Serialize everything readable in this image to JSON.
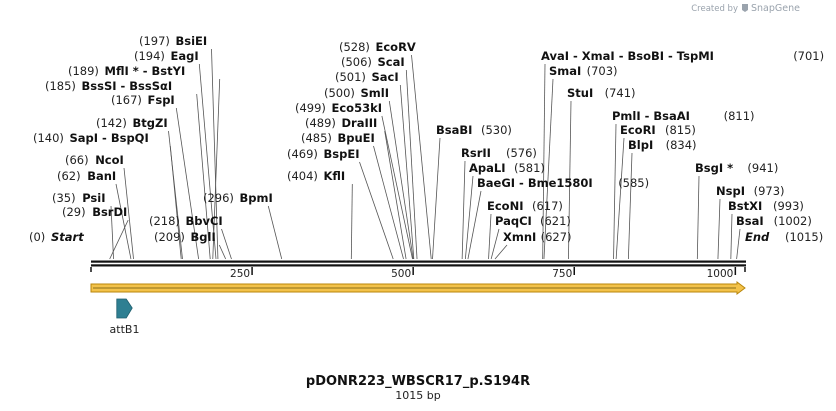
{
  "credit": {
    "prefix": "Created by",
    "brand": "SnapGene"
  },
  "plasmid": {
    "name": "pDONR223_WBSCR17_p.S194R",
    "length_label": "1015 bp",
    "length": 1015
  },
  "ticks": [
    250,
    500,
    750,
    1000
  ],
  "start_marker": {
    "pos": "(0)",
    "name": "Start",
    "at": 0
  },
  "end_marker": {
    "name": "End",
    "pos": "(1015)",
    "at": 1015
  },
  "sites": [
    {
      "pos": "(29)",
      "text": "BsrDI",
      "cuts": [
        29
      ],
      "side": "left"
    },
    {
      "pos": "(35)",
      "text": "PsiI",
      "cuts": [
        35
      ],
      "side": "left"
    },
    {
      "pos": "(62)",
      "text": "BanI",
      "cuts": [
        62
      ],
      "side": "left"
    },
    {
      "pos": "(66)",
      "text": "NcoI",
      "cuts": [
        66
      ],
      "side": "left"
    },
    {
      "pos": "(140)",
      "text": "SapI  -  BspQI",
      "cuts": [
        140
      ],
      "side": "left"
    },
    {
      "pos": "(142)",
      "text": "BtgZI",
      "cuts": [
        142
      ],
      "side": "left"
    },
    {
      "pos": "(167)",
      "text": "FspI",
      "cuts": [
        167
      ],
      "side": "left"
    },
    {
      "pos": "(185)",
      "text": "BssSI  -  BssSαI",
      "cuts": [
        185
      ],
      "side": "left"
    },
    {
      "pos": "(189)",
      "text": "MflI *  -  BstYI",
      "cuts": [
        189
      ],
      "side": "left"
    },
    {
      "pos": "(194)",
      "text": "EagI",
      "cuts": [
        194
      ],
      "side": "left"
    },
    {
      "pos": "(197)",
      "text": "BsiEI",
      "cuts": [
        197
      ],
      "side": "left"
    },
    {
      "pos": "(209)",
      "text": "BglI",
      "cuts": [
        209
      ],
      "side": "left"
    },
    {
      "pos": "(218)",
      "text": "BbvCI",
      "cuts": [
        218
      ],
      "side": "left"
    },
    {
      "pos": "(296)",
      "text": "BpmI",
      "cuts": [
        296
      ],
      "side": "left"
    },
    {
      "pos": "(404)",
      "text": "KflI",
      "cuts": [
        404
      ],
      "side": "left"
    },
    {
      "pos": "(469)",
      "text": "BspEI",
      "cuts": [
        469
      ],
      "side": "left"
    },
    {
      "pos": "(485)",
      "text": "BpuEI",
      "cuts": [
        485
      ],
      "side": "left"
    },
    {
      "pos": "(489)",
      "text": "DraIII",
      "cuts": [
        489
      ],
      "side": "left"
    },
    {
      "pos": "(499)",
      "text": "Eco53kI",
      "cuts": [
        499
      ],
      "side": "left"
    },
    {
      "pos": "(500)",
      "text": "SmlI",
      "cuts": [
        500
      ],
      "side": "left"
    },
    {
      "pos": "(501)",
      "text": "SacI",
      "cuts": [
        501
      ],
      "side": "left"
    },
    {
      "pos": "(506)",
      "text": "ScaI",
      "cuts": [
        506
      ],
      "side": "left"
    },
    {
      "pos": "(528)",
      "text": "EcoRV",
      "cuts": [
        528
      ],
      "side": "left"
    },
    {
      "pos": "(530)",
      "text": "BsaBI",
      "cuts": [
        530
      ],
      "side": "right"
    },
    {
      "pos": "(576)",
      "text": "RsrII",
      "cuts": [
        576
      ],
      "side": "right"
    },
    {
      "pos": "(581)",
      "text": "ApaLI",
      "cuts": [
        581
      ],
      "side": "right"
    },
    {
      "pos": "(585)",
      "text": "BaeGI  -  Bme1580I",
      "cuts": [
        585
      ],
      "side": "right"
    },
    {
      "pos": "(617)",
      "text": "EcoNI",
      "cuts": [
        617
      ],
      "side": "right"
    },
    {
      "pos": "(621)",
      "text": "PaqCI",
      "cuts": [
        621
      ],
      "side": "right"
    },
    {
      "pos": "(627)",
      "text": "XmnI",
      "cuts": [
        627
      ],
      "side": "right"
    },
    {
      "pos": "(701)",
      "text": "AvaI  -  XmaI  -  BsoBI  -  TspMI",
      "cuts": [
        701
      ],
      "side": "right"
    },
    {
      "pos": "(703)",
      "text": "SmaI",
      "cuts": [
        703
      ],
      "side": "right"
    },
    {
      "pos": "(741)",
      "text": "StuI",
      "cuts": [
        741
      ],
      "side": "right"
    },
    {
      "pos": "(811)",
      "text": "PmlI  -  BsaAI",
      "cuts": [
        811
      ],
      "side": "right"
    },
    {
      "pos": "(815)",
      "text": "EcoRI",
      "cuts": [
        815
      ],
      "side": "right"
    },
    {
      "pos": "(834)",
      "text": "BlpI",
      "cuts": [
        834
      ],
      "side": "right"
    },
    {
      "pos": "(941)",
      "text": "BsgI *",
      "cuts": [
        941
      ],
      "side": "right"
    },
    {
      "pos": "(973)",
      "text": "NspI",
      "cuts": [
        973
      ],
      "side": "right"
    },
    {
      "pos": "(993)",
      "text": "BstXI",
      "cuts": [
        993
      ],
      "side": "right"
    },
    {
      "pos": "(1002)",
      "text": "BsaI",
      "cuts": [
        1002
      ],
      "side": "right"
    }
  ],
  "features": [
    {
      "name": "attB1",
      "start": 40,
      "end": 64,
      "color": "#2e7f92"
    }
  ],
  "colors": {
    "backbone": "#111111",
    "orf_fill": "#f3c24a",
    "orf_stroke": "#b8860b",
    "feature": "#2e7f92"
  }
}
